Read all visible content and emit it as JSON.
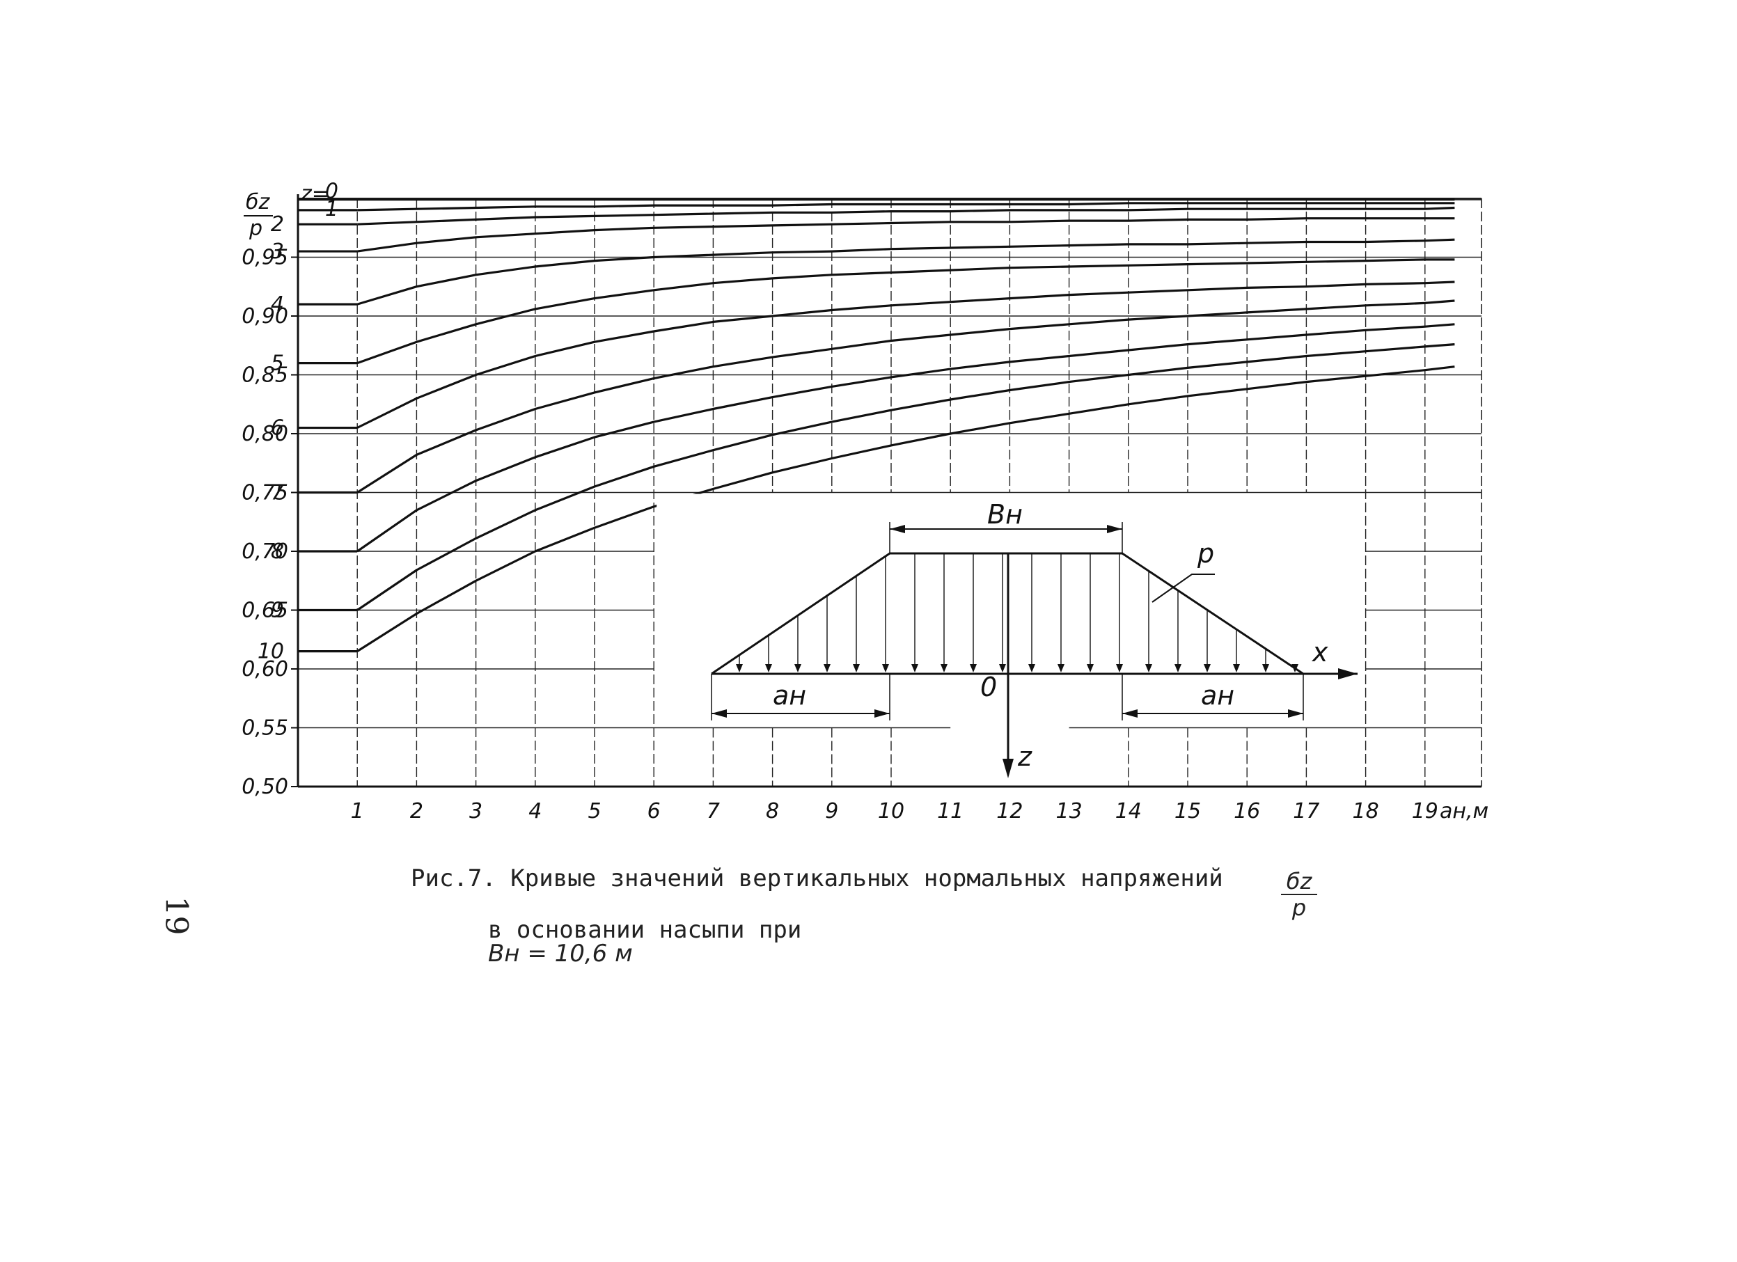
{
  "chart_data": {
    "type": "line",
    "y_axis_label": {
      "numerator": "б̲z̲",
      "numerator_plain": "бz",
      "denominator": "p"
    },
    "x_axis_label": "aн,м",
    "curve_key_prefix": "z=",
    "xlim": [
      0,
      19.5
    ],
    "ylim": [
      0.5,
      1.0
    ],
    "x_ticks": [
      1,
      2,
      3,
      4,
      5,
      6,
      7,
      8,
      9,
      10,
      11,
      12,
      13,
      14,
      15,
      16,
      17,
      18,
      19
    ],
    "x_tick_labels": [
      "1",
      "2",
      "3",
      "4",
      "5",
      "6",
      "7",
      "8",
      "9",
      "10",
      "11",
      "12",
      "13",
      "14",
      "15",
      "16",
      "17",
      "18",
      "19"
    ],
    "y_ticks": [
      0.5,
      0.55,
      0.6,
      0.65,
      0.7,
      0.75,
      0.8,
      0.85,
      0.9,
      0.95
    ],
    "y_tick_labels": [
      "0,50",
      "0,55",
      "0,60",
      "0,65",
      "0,70",
      "0,75",
      "0,80",
      "0,85",
      "0,90",
      "0,95"
    ],
    "grid": true,
    "x": [
      1,
      2,
      3,
      4,
      5,
      6,
      7,
      8,
      9,
      10,
      11,
      12,
      13,
      14,
      15,
      16,
      17,
      18,
      19,
      19.5
    ],
    "series": [
      {
        "name": "0",
        "values": [
          0.999,
          0.999,
          0.999,
          0.999,
          0.999,
          0.999,
          0.999,
          0.999,
          0.999,
          0.999,
          0.999,
          0.999,
          0.999,
          0.999,
          0.999,
          0.999,
          0.999,
          0.999,
          0.999,
          0.999
        ]
      },
      {
        "name": "1",
        "values": [
          0.99,
          0.991,
          0.992,
          0.993,
          0.993,
          0.994,
          0.994,
          0.994,
          0.995,
          0.995,
          0.995,
          0.995,
          0.995,
          0.996,
          0.996,
          0.996,
          0.996,
          0.996,
          0.996,
          0.996
        ]
      },
      {
        "name": "2",
        "values": [
          0.978,
          0.98,
          0.982,
          0.984,
          0.985,
          0.986,
          0.987,
          0.988,
          0.988,
          0.989,
          0.989,
          0.99,
          0.99,
          0.99,
          0.991,
          0.991,
          0.991,
          0.991,
          0.991,
          0.992
        ]
      },
      {
        "name": "3",
        "values": [
          0.955,
          0.962,
          0.967,
          0.97,
          0.973,
          0.975,
          0.976,
          0.977,
          0.978,
          0.979,
          0.98,
          0.98,
          0.981,
          0.981,
          0.982,
          0.982,
          0.983,
          0.983,
          0.983,
          0.983
        ]
      },
      {
        "name": "4",
        "values": [
          0.91,
          0.925,
          0.935,
          0.942,
          0.947,
          0.95,
          0.952,
          0.954,
          0.955,
          0.957,
          0.958,
          0.959,
          0.96,
          0.961,
          0.961,
          0.962,
          0.963,
          0.963,
          0.964,
          0.965
        ]
      },
      {
        "name": "5",
        "values": [
          0.86,
          0.878,
          0.893,
          0.906,
          0.915,
          0.922,
          0.928,
          0.932,
          0.935,
          0.937,
          0.939,
          0.941,
          0.942,
          0.943,
          0.944,
          0.945,
          0.946,
          0.947,
          0.948,
          0.948
        ]
      },
      {
        "name": "6",
        "values": [
          0.805,
          0.83,
          0.85,
          0.866,
          0.878,
          0.887,
          0.895,
          0.9,
          0.905,
          0.909,
          0.912,
          0.915,
          0.918,
          0.92,
          0.922,
          0.924,
          0.925,
          0.927,
          0.928,
          0.929
        ]
      },
      {
        "name": "7",
        "values": [
          0.75,
          0.782,
          0.803,
          0.821,
          0.835,
          0.847,
          0.857,
          0.865,
          0.872,
          0.879,
          0.884,
          0.889,
          0.893,
          0.897,
          0.9,
          0.903,
          0.906,
          0.909,
          0.911,
          0.913
        ]
      },
      {
        "name": "8",
        "values": [
          0.7,
          0.735,
          0.76,
          0.78,
          0.797,
          0.81,
          0.821,
          0.831,
          0.84,
          0.848,
          0.855,
          0.861,
          0.866,
          0.871,
          0.876,
          0.88,
          0.884,
          0.888,
          0.891,
          0.893
        ]
      },
      {
        "name": "9",
        "values": [
          0.65,
          0.684,
          0.711,
          0.735,
          0.755,
          0.772,
          0.786,
          0.799,
          0.81,
          0.82,
          0.829,
          0.837,
          0.844,
          0.85,
          0.856,
          0.861,
          0.866,
          0.87,
          0.874,
          0.876
        ]
      },
      {
        "name": "10",
        "values": [
          0.615,
          0.647,
          0.675,
          0.7,
          0.72,
          0.738,
          0.753,
          0.767,
          0.779,
          0.79,
          0.8,
          0.809,
          0.817,
          0.825,
          0.832,
          0.838,
          0.844,
          0.849,
          0.854,
          0.857
        ]
      }
    ],
    "inset": {
      "labels": {
        "top_width": "Bн",
        "load": "p",
        "x_axis": "x",
        "z_axis": "z",
        "origin": "0",
        "left_slope": "aн",
        "right_slope": "aн"
      }
    },
    "caption": {
      "line1": "Рис.7. Кривые значений вертикальных нормальных напряжений",
      "line2": "в основании насыпи при",
      "line2_var": "Bн = 10,6 м",
      "fraction_num": "бz",
      "fraction_den": "p"
    },
    "page_number": "19"
  }
}
